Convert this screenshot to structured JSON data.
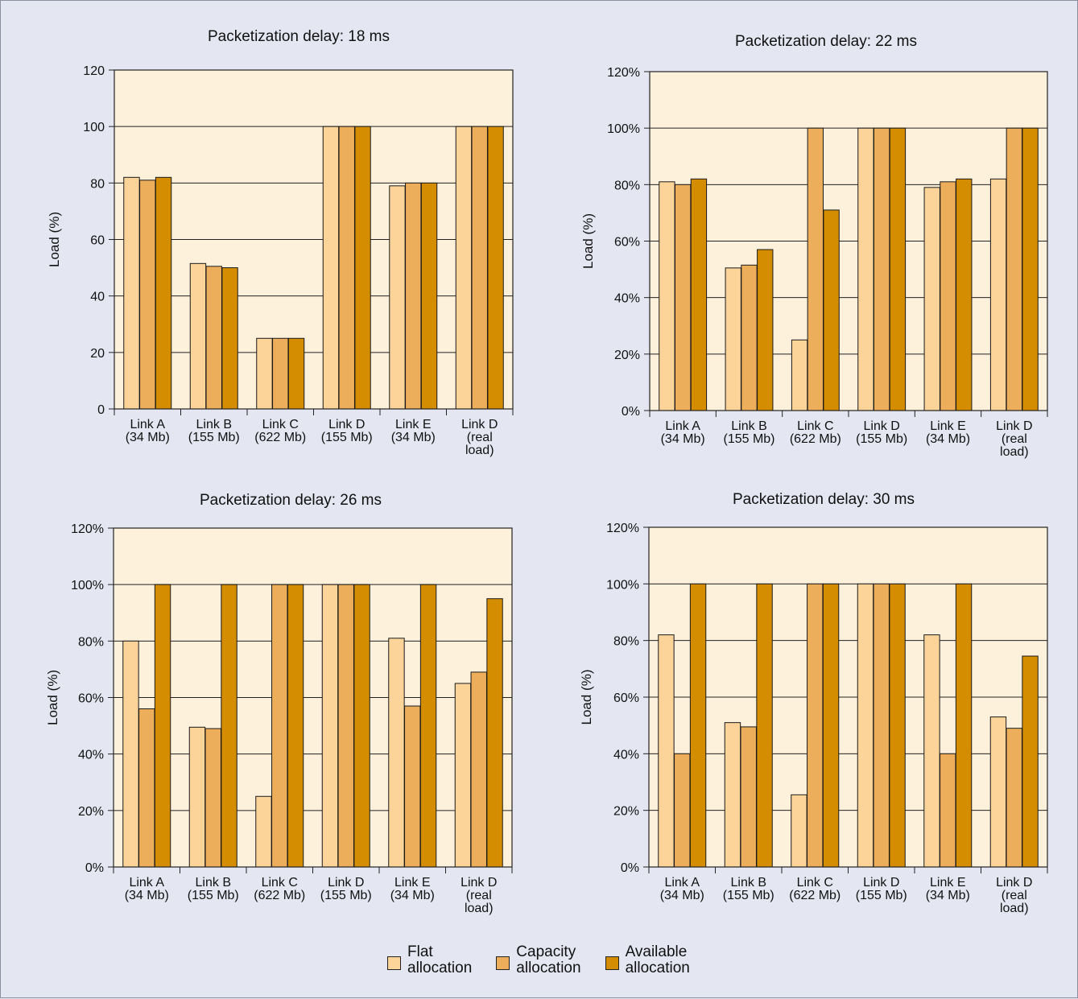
{
  "colors": {
    "flat": "#fcd49a",
    "capacity": "#ecae5a",
    "available": "#d48c00",
    "plot_bg": "#fdf1dc",
    "page_bg": "#e4e7f1"
  },
  "legend": [
    {
      "key": "flat",
      "label": "Flat\nallocation"
    },
    {
      "key": "capacity",
      "label": "Capacity\nallocation"
    },
    {
      "key": "available",
      "label": "Available\nallocation"
    }
  ],
  "chart_data": [
    {
      "type": "bar",
      "title": "Packetization delay: 18 ms",
      "ylabel": "Load (%)",
      "ylim": [
        0,
        120
      ],
      "yticks": [
        "0",
        "20",
        "40",
        "60",
        "80",
        "100",
        "120"
      ],
      "categories": [
        "Link A\n(34 Mb)",
        "Link B\n(155 Mb)",
        "Link C\n(622 Mb)",
        "Link D\n(155 Mb)",
        "Link E\n(34 Mb)",
        "Link D\n(real\nload)"
      ],
      "series": [
        {
          "name": "Flat allocation",
          "values": [
            82,
            51.5,
            25,
            100,
            79,
            100
          ]
        },
        {
          "name": "Capacity allocation",
          "values": [
            81,
            50.5,
            25,
            100,
            80,
            100
          ]
        },
        {
          "name": "Available allocation",
          "values": [
            82,
            50,
            25,
            100,
            80,
            100
          ]
        }
      ]
    },
    {
      "type": "bar",
      "title": "Packetization delay: 22 ms",
      "ylabel": "Load (%)",
      "ylim": [
        0,
        120
      ],
      "yticks": [
        "0%",
        "20%",
        "40%",
        "60%",
        "80%",
        "100%",
        "120%"
      ],
      "categories": [
        "Link A\n(34 Mb)",
        "Link B\n(155 Mb)",
        "Link C\n(622 Mb)",
        "Link D\n(155 Mb)",
        "Link E\n(34 Mb)",
        "Link D\n(real\nload)"
      ],
      "series": [
        {
          "name": "Flat allocation",
          "values": [
            81,
            50.5,
            25,
            100,
            79,
            82
          ]
        },
        {
          "name": "Capacity allocation",
          "values": [
            80,
            51.5,
            100,
            100,
            81,
            100
          ]
        },
        {
          "name": "Available allocation",
          "values": [
            82,
            57,
            71,
            100,
            82,
            100
          ]
        }
      ]
    },
    {
      "type": "bar",
      "title": "Packetization delay: 26 ms",
      "ylabel": "Load (%)",
      "ylim": [
        0,
        120
      ],
      "yticks": [
        "0%",
        "20%",
        "40%",
        "60%",
        "80%",
        "100%",
        "120%"
      ],
      "categories": [
        "Link A\n(34 Mb)",
        "Link B\n(155 Mb)",
        "Link C\n(622 Mb)",
        "Link D\n(155 Mb)",
        "Link E\n(34 Mb)",
        "Link D\n(real\nload)"
      ],
      "series": [
        {
          "name": "Flat allocation",
          "values": [
            80,
            49.5,
            25,
            100,
            81,
            65
          ]
        },
        {
          "name": "Capacity allocation",
          "values": [
            56,
            49,
            100,
            100,
            57,
            69
          ]
        },
        {
          "name": "Available allocation",
          "values": [
            100,
            100,
            100,
            100,
            100,
            95
          ]
        }
      ]
    },
    {
      "type": "bar",
      "title": "Packetization delay: 30 ms",
      "ylabel": "Load (%)",
      "ylim": [
        0,
        120
      ],
      "yticks": [
        "0%",
        "20%",
        "40%",
        "60%",
        "80%",
        "100%",
        "120%"
      ],
      "categories": [
        "Link A\n(34 Mb)",
        "Link B\n(155 Mb)",
        "Link C\n(622 Mb)",
        "Link D\n(155 Mb)",
        "Link E\n(34 Mb)",
        "Link D\n(real\nload)"
      ],
      "series": [
        {
          "name": "Flat allocation",
          "values": [
            82,
            51,
            25.5,
            100,
            82,
            53
          ]
        },
        {
          "name": "Capacity allocation",
          "values": [
            40,
            49.5,
            100,
            100,
            40,
            49
          ]
        },
        {
          "name": "Available allocation",
          "values": [
            100,
            100,
            100,
            100,
            100,
            74.5
          ]
        }
      ]
    }
  ]
}
